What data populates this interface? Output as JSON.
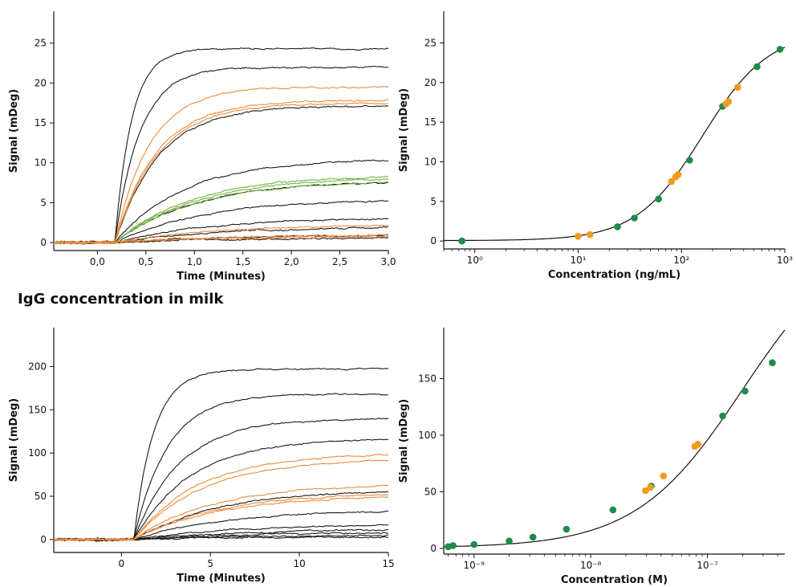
{
  "section_title": "IgG concentration in milk",
  "colors": {
    "black": "#1a1a1a",
    "orange": "#ef8a3a",
    "green": "#6fb43f",
    "dot_green": "#1f8a4c",
    "dot_orange": "#f29a1c"
  },
  "chart_data": [
    {
      "type": "line",
      "xlabel": "Time (Minutes)",
      "ylabel": "Signal (mDeg)",
      "xlim": [
        -0.45,
        3.0
      ],
      "ylim": [
        -1,
        29
      ],
      "xticks": [
        0.0,
        0.5,
        1.0,
        1.5,
        2.0,
        2.5,
        3.0
      ],
      "xtick_labels": [
        "0,0",
        "0,5",
        "1,0",
        "1,5",
        "2,0",
        "2,5",
        "3,0"
      ],
      "yticks": [
        0,
        5,
        10,
        15,
        20,
        25
      ],
      "ytick_labels": [
        "0",
        "5",
        "10",
        "15",
        "20",
        "25"
      ],
      "onset": 0.18,
      "series_plateaus": {
        "black": [
          24.3,
          22.0,
          17.2,
          10.5,
          7.8,
          5.5,
          3.2,
          2.0,
          1.0,
          0.6
        ],
        "orange": [
          19.5,
          17.8,
          17.5,
          2.3,
          1.0,
          0.8
        ],
        "green": [
          8.5,
          8.2,
          7.8
        ]
      }
    },
    {
      "type": "scatter",
      "xlabel": "Concentration (ng/mL)",
      "ylabel": "Signal (mDeg)",
      "xscale": "log",
      "xlim": [
        0.5,
        1000
      ],
      "ylim": [
        -1,
        29
      ],
      "xticks": [
        1,
        10,
        100,
        1000
      ],
      "xtick_labels": [
        "10⁰",
        "10¹",
        "10²",
        "10³"
      ],
      "yticks": [
        0,
        5,
        10,
        15,
        20,
        25
      ],
      "ytick_labels": [
        "0",
        "5",
        "10",
        "15",
        "20",
        "25"
      ],
      "series": [
        {
          "color": "green",
          "x": [
            0.75,
            24,
            35,
            60,
            120,
            250,
            540,
            900
          ],
          "y": [
            0.0,
            1.8,
            2.9,
            5.3,
            10.2,
            17.0,
            22.0,
            24.2
          ]
        },
        {
          "color": "orange",
          "x": [
            10,
            13,
            80,
            88,
            93,
            270,
            285,
            350
          ],
          "y": [
            0.6,
            0.8,
            7.5,
            8.1,
            8.4,
            17.3,
            17.6,
            19.4
          ]
        }
      ],
      "fit": {
        "bottom": 0.05,
        "top": 26.5,
        "ec50": 160,
        "hill": 1.35
      }
    },
    {
      "type": "line",
      "xlabel": "Time (Minutes)",
      "ylabel": "Signal (mDeg)",
      "xlim": [
        -3.8,
        15
      ],
      "ylim": [
        -15,
        245
      ],
      "xticks": [
        0,
        5,
        10,
        15
      ],
      "xtick_labels": [
        "0",
        "5",
        "10",
        "15"
      ],
      "yticks": [
        0,
        50,
        100,
        150,
        200
      ],
      "ytick_labels": [
        "0",
        "50",
        "100",
        "150",
        "200"
      ],
      "onset": 0.7,
      "series_plateaus": {
        "black": [
          197,
          168,
          140,
          117,
          58,
          35,
          18,
          12,
          8,
          5,
          3
        ],
        "orange": [
          100,
          93,
          65,
          55,
          52
        ]
      }
    },
    {
      "type": "scatter",
      "xlabel": "Concentration (M)",
      "ylabel": "Signal (mDeg)",
      "xscale": "log",
      "xlim": [
        5.5e-10,
        4.6e-07
      ],
      "ylim": [
        -5,
        195
      ],
      "xticks": [
        1e-09,
        1e-08,
        1e-07
      ],
      "xtick_labels": [
        "10⁻⁹",
        "10⁻⁸",
        "10⁻⁷"
      ],
      "yticks": [
        0,
        50,
        100,
        150
      ],
      "ytick_labels": [
        "0",
        "50",
        "100",
        "150"
      ],
      "series": [
        {
          "color": "green",
          "x": [
            6e-10,
            6.6e-10,
            1e-09,
            2e-09,
            3.2e-09,
            6.2e-09,
            1.55e-08,
            3.3e-08,
            1.35e-07,
            2.1e-07,
            3.6e-07
          ],
          "y": [
            1.5,
            2.5,
            3.5,
            6.5,
            10,
            17,
            34,
            55,
            117,
            139,
            164
          ]
        },
        {
          "color": "orange",
          "x": [
            2.95e-08,
            3.25e-08,
            4.2e-08,
            7.8e-08,
            8.3e-08
          ],
          "y": [
            51,
            54,
            64,
            90,
            92
          ]
        }
      ],
      "fit": {
        "bottom": 0.5,
        "top": 280,
        "ec50": 2e-07,
        "hill": 0.95
      }
    }
  ]
}
